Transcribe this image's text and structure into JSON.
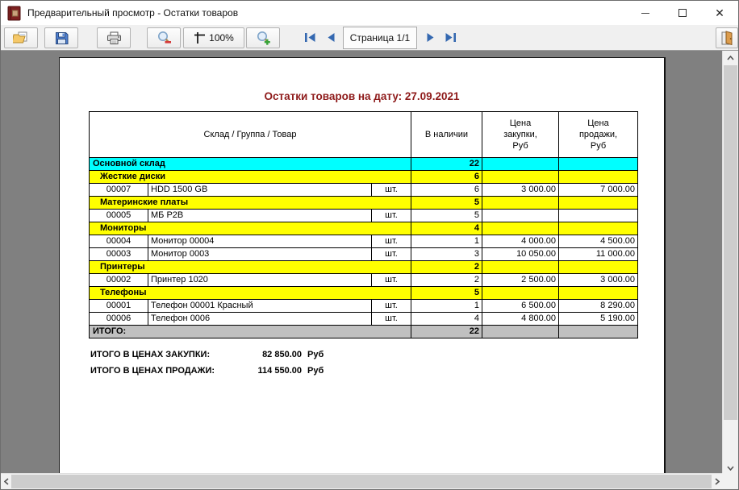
{
  "window": {
    "title": "Предварительный просмотр - Остатки товаров",
    "controls": {
      "minimize": "minimize",
      "maximize": "maximize",
      "close": "close"
    },
    "app_icon": "red-book-icon"
  },
  "toolbar": {
    "zoom_label": "100%",
    "page_label": "Страница 1/1",
    "buttons": [
      {
        "id": "open",
        "icon": "open-folder-icon"
      },
      {
        "id": "save",
        "icon": "save-floppy-icon"
      },
      {
        "id": "print",
        "icon": "printer-icon"
      },
      {
        "id": "zoom-out",
        "icon": "zoom-out-icon"
      },
      {
        "id": "scale",
        "icon": "scale-icon",
        "label": "100%"
      },
      {
        "id": "zoom-in",
        "icon": "zoom-in-icon"
      },
      {
        "id": "first-page",
        "icon": "first-page-icon"
      },
      {
        "id": "prev-page",
        "icon": "prev-page-icon"
      },
      {
        "id": "next-page",
        "icon": "next-page-icon"
      },
      {
        "id": "last-page",
        "icon": "last-page-icon"
      },
      {
        "id": "exit",
        "icon": "exit-door-icon"
      }
    ]
  },
  "report": {
    "title": "Остатки товаров на дату: 27.09.2021",
    "table": {
      "headers": {
        "item": "Склад / Группа / Товар",
        "qty": "В наличии",
        "purchase": "Цена\nзакупки,\nРуб",
        "sale": "Цена\nпродажи,\nРуб"
      },
      "rows": [
        {
          "type": "warehouse",
          "label": "Основной склад",
          "qty": "22",
          "purchase": "",
          "sale": ""
        },
        {
          "type": "group",
          "label": "Жесткие диски",
          "qty": "6",
          "purchase": "",
          "sale": ""
        },
        {
          "type": "item",
          "code": "00007",
          "name": "HDD 1500 GB",
          "unit": "шт.",
          "qty": "6",
          "purchase": "3 000.00",
          "sale": "7 000.00"
        },
        {
          "type": "group",
          "label": "Материнские платы",
          "qty": "5",
          "purchase": "",
          "sale": ""
        },
        {
          "type": "item",
          "code": "00005",
          "name": "МБ Р2В",
          "unit": "шт.",
          "qty": "5",
          "purchase": "",
          "sale": ""
        },
        {
          "type": "group",
          "label": "Мониторы",
          "qty": "4",
          "purchase": "",
          "sale": ""
        },
        {
          "type": "item",
          "code": "00004",
          "name": "Монитор 00004",
          "unit": "шт.",
          "qty": "1",
          "purchase": "4 000.00",
          "sale": "4 500.00"
        },
        {
          "type": "item",
          "code": "00003",
          "name": "Монитор 0003",
          "unit": "шт.",
          "qty": "3",
          "purchase": "10 050.00",
          "sale": "11 000.00"
        },
        {
          "type": "group",
          "label": "Принтеры",
          "qty": "2",
          "purchase": "",
          "sale": ""
        },
        {
          "type": "item",
          "code": "00002",
          "name": "Принтер 1020",
          "unit": "шт.",
          "qty": "2",
          "purchase": "2 500.00",
          "sale": "3 000.00"
        },
        {
          "type": "group",
          "label": "Телефоны",
          "qty": "5",
          "purchase": "",
          "sale": ""
        },
        {
          "type": "item",
          "code": "00001",
          "name": "Телефон 00001 Красный",
          "unit": "шт.",
          "qty": "1",
          "purchase": "6 500.00",
          "sale": "8 290.00"
        },
        {
          "type": "item",
          "code": "00006",
          "name": "Телефон 0006",
          "unit": "шт.",
          "qty": "4",
          "purchase": "4 800.00",
          "sale": "5 190.00"
        },
        {
          "type": "total",
          "label": "ИТОГО:",
          "qty": "22",
          "purchase": "",
          "sale": ""
        }
      ]
    },
    "summary": [
      {
        "label": "ИТОГО В ЦЕНАХ ЗАКУПКИ:",
        "value": "82 850.00",
        "currency": "Руб"
      },
      {
        "label": "ИТОГО В ЦЕНАХ ПРОДАЖИ:",
        "value": "114 550.00",
        "currency": "Руб"
      }
    ]
  },
  "colors": {
    "warehouse_row": "#00ffff",
    "group_row": "#ffff00",
    "total_row": "#c0c0c0",
    "report_title": "#8e1a1a",
    "nav_arrow": "#3468b0",
    "content_bg": "#808080"
  }
}
